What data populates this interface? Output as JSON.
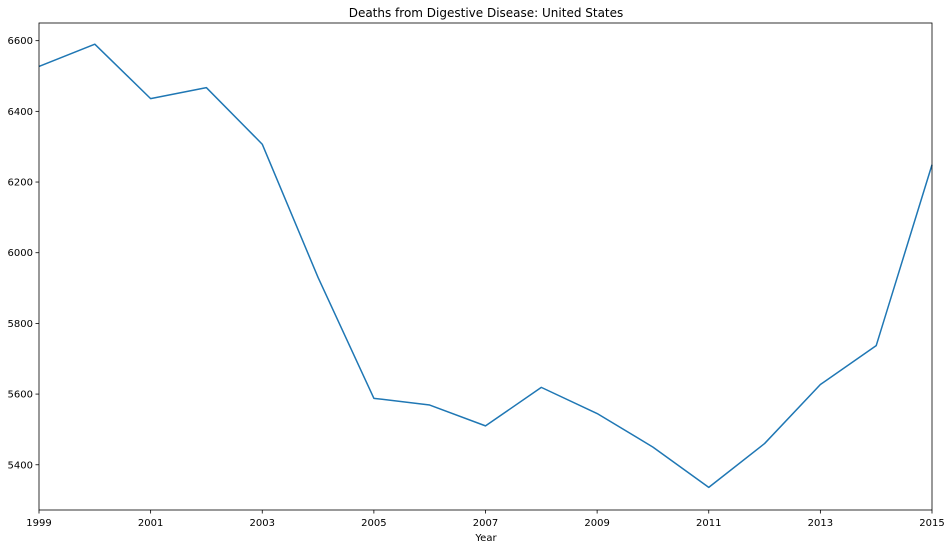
{
  "chart_data": {
    "type": "line",
    "title": "Deaths from Digestive Disease: United States",
    "xlabel": "Year",
    "ylabel": "",
    "x": [
      1999,
      2000,
      2001,
      2002,
      2003,
      2004,
      2005,
      2006,
      2007,
      2008,
      2009,
      2010,
      2011,
      2012,
      2013,
      2014,
      2015
    ],
    "series": [
      {
        "values": [
          6527,
          6590,
          6436,
          6467,
          6307,
          5930,
          5588,
          5569,
          5510,
          5619,
          5545,
          5450,
          5336,
          5460,
          5627,
          5737,
          6249
        ]
      }
    ],
    "xlim": [
      1999,
      2015
    ],
    "ylim": [
      5272,
      6650
    ],
    "xticks": [
      "1999",
      "2001",
      "2003",
      "2005",
      "2007",
      "2009",
      "2011",
      "2013",
      "2015"
    ],
    "yticks": [
      "5400",
      "5600",
      "5800",
      "6000",
      "6200",
      "6400",
      "6600"
    ],
    "grid": false,
    "line_color": "#1f77b4"
  }
}
